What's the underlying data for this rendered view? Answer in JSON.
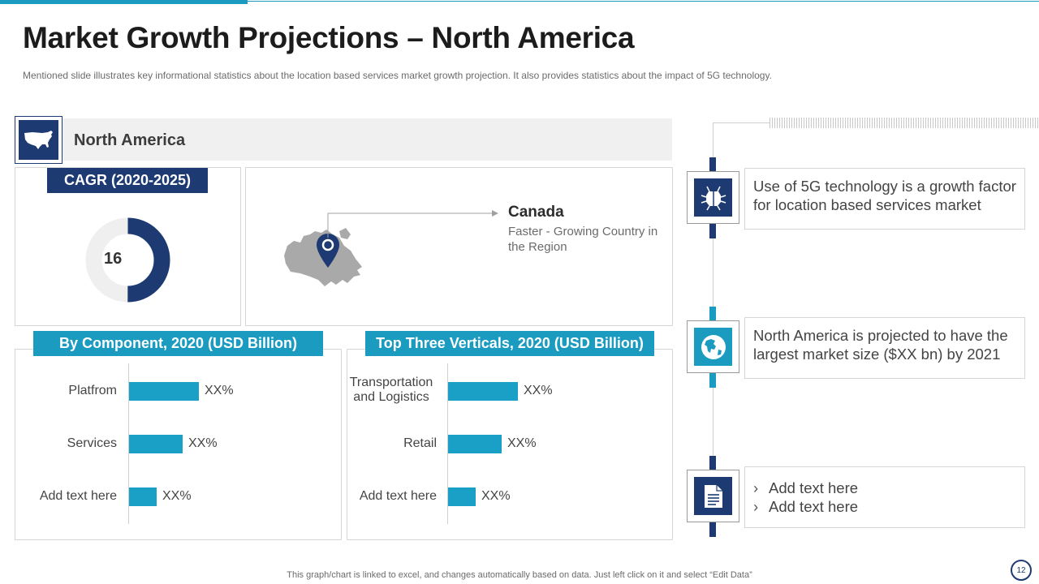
{
  "slide": {
    "title": "Market Growth Projections – North America",
    "subtitle": "Mentioned slide illustrates key informational  statistics about the location based services  market growth  projection.  It also provides  statistics about the impact of 5G technology.",
    "footer": "This graph/chart is linked to excel,  and changes automatically based on data. Just left click on it and select “Edit Data”",
    "page_number": "12"
  },
  "region": {
    "name": "North America",
    "icon": "usa-map-icon"
  },
  "cagr": {
    "label": "CAGR (2020-2025)",
    "value": "16",
    "donut_fraction": 0.5
  },
  "canada": {
    "title": "Canada",
    "description": "Faster - Growing Country in the Region",
    "icon": "canada-map-icon"
  },
  "colors": {
    "navy": "#1e3a73",
    "teal": "#1a9bbf",
    "bar": "#1aa0c6",
    "grey": "#f0f0f0"
  },
  "chart_data": [
    {
      "type": "bar",
      "orientation": "horizontal",
      "title": "By Component, 2020 (USD Billion)",
      "categories": [
        "Platfrom",
        "Services",
        "Add text here"
      ],
      "values": [
        4.6,
        3.5,
        1.8
      ],
      "value_labels": [
        "XX%",
        "XX%",
        "XX%"
      ],
      "xlim": [
        0,
        10
      ]
    },
    {
      "type": "bar",
      "orientation": "horizontal",
      "title": "Top Three Verticals, 2020 (USD Billion)",
      "categories": [
        "Transportation and Logistics",
        "Retail",
        "Add text here"
      ],
      "values": [
        4.6,
        3.5,
        1.8
      ],
      "value_labels": [
        "XX%",
        "XX%",
        "XX%"
      ],
      "xlim": [
        0,
        10
      ]
    }
  ],
  "timeline": [
    {
      "icon": "chip-icon",
      "text": "Use of 5G technology is a growth factor for location based services market"
    },
    {
      "icon": "globe-icon",
      "text": "North America is projected to have the largest market size ($XX bn) by 2021"
    },
    {
      "icon": "document-icon",
      "bullets": [
        "Add text here",
        "Add text here"
      ]
    }
  ]
}
